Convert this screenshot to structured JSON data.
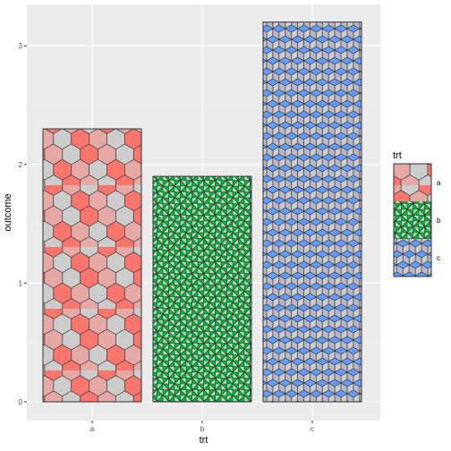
{
  "chart_data": {
    "type": "bar",
    "categories": [
      "a",
      "b",
      "c"
    ],
    "values": [
      2.3,
      1.9,
      3.2
    ],
    "xlabel": "trt",
    "ylabel": "outcome",
    "ylim": [
      0,
      3.2
    ],
    "yticks": [
      0,
      1,
      2,
      3
    ],
    "grid": true,
    "legend": {
      "title": "trt",
      "position": "right",
      "entries": [
        "a",
        "b",
        "c"
      ]
    },
    "patterns": [
      {
        "category": "a",
        "pattern": "hexagons",
        "colors": [
          "#F8766D",
          "#E6A8A4",
          "#CCCCCC"
        ]
      },
      {
        "category": "b",
        "pattern": "pinwheel-triangles",
        "colors": [
          "#00BA38",
          "#AFE4B8"
        ]
      },
      {
        "category": "c",
        "pattern": "rhombille-cubes",
        "colors": [
          "#619CFF",
          "#CCCCCC",
          "#B7B7C9"
        ]
      }
    ],
    "panel_background": "#EBEBEB",
    "grid_color": "#FFFFFF"
  }
}
